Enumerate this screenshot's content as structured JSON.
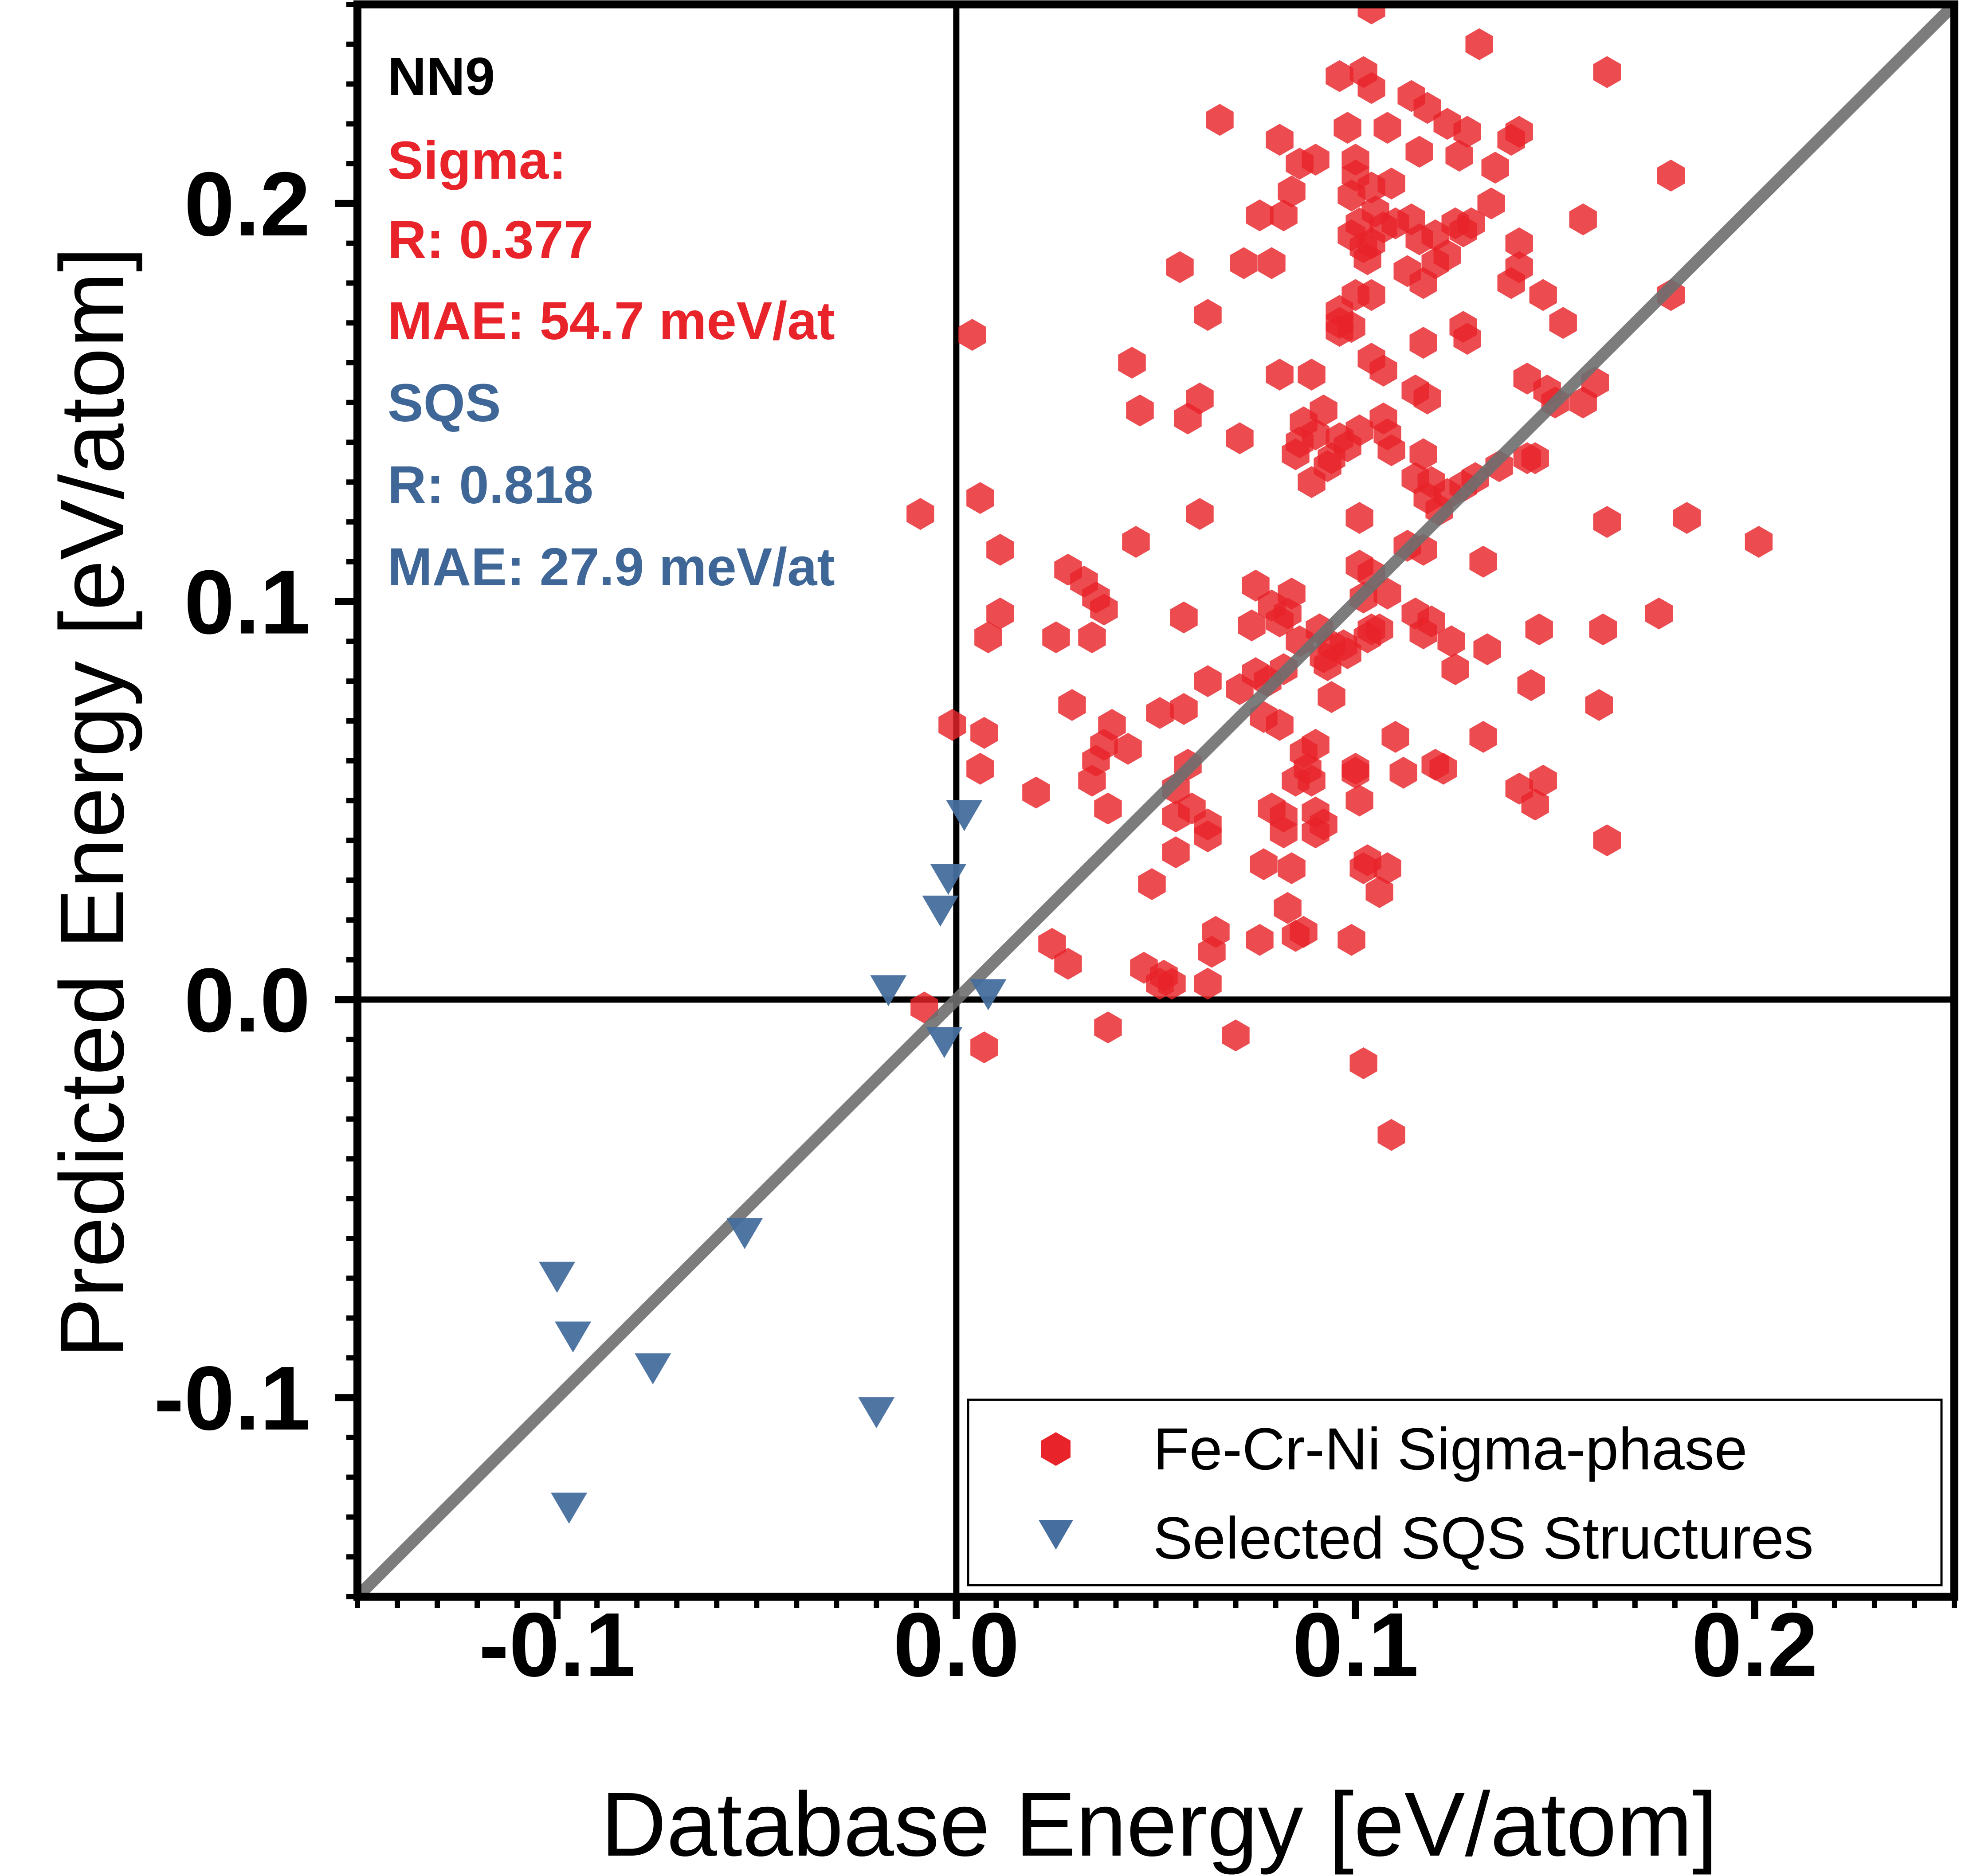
{
  "chart_data": {
    "type": "scatter",
    "xlabel": "Database Energy [eV/atom]",
    "ylabel": "Predicted Energy [eV/atom]",
    "xlim": [
      -0.15,
      0.25
    ],
    "ylim": [
      -0.15,
      0.25
    ],
    "xticks": [
      -0.1,
      0.0,
      0.1,
      0.2
    ],
    "yticks": [
      -0.1,
      0.0,
      0.1,
      0.2
    ],
    "xtick_labels": [
      "-0.1",
      "0.0",
      "0.1",
      "0.2"
    ],
    "ytick_labels": [
      "-0.1",
      "0.0",
      "0.1",
      "0.2"
    ],
    "minor_tick_step": 0.01,
    "reference_lines": {
      "x": 0.0,
      "y": 0.0,
      "diagonal": "y = x"
    },
    "legend_position": "bottom-right",
    "annotations": {
      "model": "NN9",
      "sigma_header": "Sigma:",
      "sigma_r": "R: 0.377",
      "sigma_mae": "MAE: 54.7 meV/at",
      "sqs_header": "SQS",
      "sqs_r": "R: 0.818",
      "sqs_mae": "MAE: 27.9 meV/at"
    },
    "colors": {
      "sigma": "#e8232a",
      "sqs": "#466e9e",
      "diagonal": "#6e6e6e",
      "sigma_text": "#e8232a",
      "sqs_text": "#3e6696"
    },
    "series": [
      {
        "name": "Fe-Cr-Ni Sigma-phase",
        "marker": "hexagon",
        "points": [
          [
            0.104,
            0.249
          ],
          [
            0.131,
            0.24
          ],
          [
            0.102,
            0.233
          ],
          [
            0.096,
            0.232
          ],
          [
            0.163,
            0.233
          ],
          [
            0.104,
            0.229
          ],
          [
            0.114,
            0.227
          ],
          [
            0.118,
            0.224
          ],
          [
            0.066,
            0.221
          ],
          [
            0.098,
            0.219
          ],
          [
            0.108,
            0.219
          ],
          [
            0.123,
            0.22
          ],
          [
            0.128,
            0.218
          ],
          [
            0.141,
            0.218
          ],
          [
            0.139,
            0.216
          ],
          [
            0.081,
            0.216
          ],
          [
            0.09,
            0.211
          ],
          [
            0.1,
            0.211
          ],
          [
            0.116,
            0.213
          ],
          [
            0.126,
            0.212
          ],
          [
            0.086,
            0.21
          ],
          [
            0.1,
            0.207
          ],
          [
            0.135,
            0.209
          ],
          [
            0.179,
            0.207
          ],
          [
            0.104,
            0.204
          ],
          [
            0.109,
            0.205
          ],
          [
            0.099,
            0.202
          ],
          [
            0.084,
            0.203
          ],
          [
            0.134,
            0.2
          ],
          [
            0.105,
            0.198
          ],
          [
            0.11,
            0.195
          ],
          [
            0.114,
            0.196
          ],
          [
            0.082,
            0.197
          ],
          [
            0.076,
            0.197
          ],
          [
            0.101,
            0.195
          ],
          [
            0.125,
            0.195
          ],
          [
            0.129,
            0.195
          ],
          [
            0.099,
            0.192
          ],
          [
            0.107,
            0.194
          ],
          [
            0.116,
            0.191
          ],
          [
            0.12,
            0.192
          ],
          [
            0.127,
            0.193
          ],
          [
            0.157,
            0.196
          ],
          [
            0.141,
            0.19
          ],
          [
            0.102,
            0.189
          ],
          [
            0.103,
            0.186
          ],
          [
            0.104,
            0.19
          ],
          [
            0.123,
            0.187
          ],
          [
            0.12,
            0.185
          ],
          [
            0.113,
            0.183
          ],
          [
            0.056,
            0.184
          ],
          [
            0.072,
            0.185
          ],
          [
            0.079,
            0.185
          ],
          [
            0.117,
            0.18
          ],
          [
            0.141,
            0.184
          ],
          [
            0.139,
            0.18
          ],
          [
            0.104,
            0.177
          ],
          [
            0.1,
            0.177
          ],
          [
            0.096,
            0.173
          ],
          [
            0.147,
            0.177
          ],
          [
            0.179,
            0.177
          ],
          [
            0.063,
            0.172
          ],
          [
            0.096,
            0.17
          ],
          [
            0.099,
            0.169
          ],
          [
            0.127,
            0.169
          ],
          [
            0.128,
            0.166
          ],
          [
            0.117,
            0.165
          ],
          [
            0.152,
            0.17
          ],
          [
            0.004,
            0.167
          ],
          [
            0.096,
            0.168
          ],
          [
            0.104,
            0.161
          ],
          [
            0.107,
            0.158
          ],
          [
            0.044,
            0.16
          ],
          [
            0.081,
            0.157
          ],
          [
            0.089,
            0.157
          ],
          [
            0.143,
            0.156
          ],
          [
            0.16,
            0.155
          ],
          [
            0.148,
            0.153
          ],
          [
            0.115,
            0.153
          ],
          [
            0.118,
            0.151
          ],
          [
            0.15,
            0.15
          ],
          [
            0.157,
            0.15
          ],
          [
            0.061,
            0.151
          ],
          [
            0.046,
            0.148
          ],
          [
            0.058,
            0.146
          ],
          [
            0.092,
            0.148
          ],
          [
            0.101,
            0.143
          ],
          [
            0.107,
            0.146
          ],
          [
            0.108,
            0.142
          ],
          [
            0.087,
            0.145
          ],
          [
            0.09,
            0.142
          ],
          [
            0.086,
            0.14
          ],
          [
            0.085,
            0.137
          ],
          [
            0.096,
            0.141
          ],
          [
            0.071,
            0.141
          ],
          [
            0.098,
            0.139
          ],
          [
            0.094,
            0.136
          ],
          [
            0.109,
            0.138
          ],
          [
            0.117,
            0.137
          ],
          [
            0.143,
            0.136
          ],
          [
            0.145,
            0.136
          ],
          [
            0.136,
            0.134
          ],
          [
            0.093,
            0.134
          ],
          [
            0.13,
            0.131
          ],
          [
            0.089,
            0.13
          ],
          [
            0.115,
            0.131
          ],
          [
            0.119,
            0.13
          ],
          [
            0.127,
            0.129
          ],
          [
            0.123,
            0.127
          ],
          [
            0.118,
            0.126
          ],
          [
            0.121,
            0.123
          ],
          [
            0.006,
            0.126
          ],
          [
            0.061,
            0.122
          ],
          [
            0.101,
            0.121
          ],
          [
            0.163,
            0.12
          ],
          [
            0.183,
            0.121
          ],
          [
            -0.009,
            0.122
          ],
          [
            0.011,
            0.113
          ],
          [
            0.045,
            0.115
          ],
          [
            0.113,
            0.114
          ],
          [
            0.117,
            0.113
          ],
          [
            0.201,
            0.115
          ],
          [
            0.132,
            0.11
          ],
          [
            0.101,
            0.109
          ],
          [
            0.104,
            0.107
          ],
          [
            0.028,
            0.108
          ],
          [
            0.032,
            0.105
          ],
          [
            0.035,
            0.101
          ],
          [
            0.037,
            0.098
          ],
          [
            0.075,
            0.104
          ],
          [
            0.084,
            0.102
          ],
          [
            0.079,
            0.099
          ],
          [
            0.083,
            0.097
          ],
          [
            0.081,
            0.095
          ],
          [
            0.074,
            0.094
          ],
          [
            0.102,
            0.101
          ],
          [
            0.108,
            0.102
          ],
          [
            0.115,
            0.097
          ],
          [
            0.119,
            0.095
          ],
          [
            0.117,
            0.092
          ],
          [
            0.124,
            0.09
          ],
          [
            0.133,
            0.088
          ],
          [
            0.125,
            0.083
          ],
          [
            0.146,
            0.093
          ],
          [
            0.176,
            0.097
          ],
          [
            0.162,
            0.093
          ],
          [
            0.011,
            0.097
          ],
          [
            0.008,
            0.091
          ],
          [
            0.025,
            0.091
          ],
          [
            0.034,
            0.091
          ],
          [
            0.057,
            0.096
          ],
          [
            0.091,
            0.093
          ],
          [
            0.094,
            0.089
          ],
          [
            0.097,
            0.089
          ],
          [
            0.098,
            0.087
          ],
          [
            0.092,
            0.086
          ],
          [
            0.104,
            0.093
          ],
          [
            0.106,
            0.093
          ],
          [
            0.103,
            0.091
          ],
          [
            0.086,
            0.09
          ],
          [
            0.093,
            0.084
          ],
          [
            0.082,
            0.083
          ],
          [
            0.075,
            0.082
          ],
          [
            0.078,
            0.08
          ],
          [
            0.071,
            0.078
          ],
          [
            0.063,
            0.08
          ],
          [
            0.094,
            0.076
          ],
          [
            0.077,
            0.071
          ],
          [
            0.081,
            0.069
          ],
          [
            0.051,
            0.072
          ],
          [
            0.057,
            0.073
          ],
          [
            0.029,
            0.074
          ],
          [
            0.144,
            0.079
          ],
          [
            0.161,
            0.074
          ],
          [
            -0.001,
            0.069
          ],
          [
            0.007,
            0.067
          ],
          [
            0.039,
            0.069
          ],
          [
            0.037,
            0.064
          ],
          [
            0.043,
            0.063
          ],
          [
            0.035,
            0.06
          ],
          [
            0.09,
            0.064
          ],
          [
            0.087,
            0.062
          ],
          [
            0.088,
            0.058
          ],
          [
            0.089,
            0.055
          ],
          [
            0.085,
            0.055
          ],
          [
            0.1,
            0.058
          ],
          [
            0.1,
            0.057
          ],
          [
            0.11,
            0.066
          ],
          [
            0.132,
            0.066
          ],
          [
            0.12,
            0.059
          ],
          [
            0.122,
            0.058
          ],
          [
            0.112,
            0.057
          ],
          [
            0.034,
            0.055
          ],
          [
            0.058,
            0.059
          ],
          [
            0.055,
            0.053
          ],
          [
            0.141,
            0.053
          ],
          [
            0.147,
            0.055
          ],
          [
            0.145,
            0.049
          ],
          [
            0.006,
            0.058
          ],
          [
            0.02,
            0.052
          ],
          [
            0.038,
            0.048
          ],
          [
            0.055,
            0.046
          ],
          [
            0.059,
            0.048
          ],
          [
            0.063,
            0.044
          ],
          [
            0.063,
            0.041
          ],
          [
            0.079,
            0.048
          ],
          [
            0.082,
            0.046
          ],
          [
            0.082,
            0.042
          ],
          [
            0.09,
            0.047
          ],
          [
            0.092,
            0.044
          ],
          [
            0.09,
            0.042
          ],
          [
            0.101,
            0.05
          ],
          [
            0.163,
            0.04
          ],
          [
            0.055,
            0.037
          ],
          [
            0.077,
            0.034
          ],
          [
            0.084,
            0.033
          ],
          [
            0.102,
            0.033
          ],
          [
            0.103,
            0.035
          ],
          [
            0.108,
            0.033
          ],
          [
            0.106,
            0.027
          ],
          [
            0.049,
            0.029
          ],
          [
            0.083,
            0.023
          ],
          [
            0.087,
            0.017
          ],
          [
            0.085,
            0.016
          ],
          [
            0.065,
            0.017
          ],
          [
            0.076,
            0.015
          ],
          [
            0.064,
            0.012
          ],
          [
            0.024,
            0.014
          ],
          [
            0.099,
            0.015
          ],
          [
            0.028,
            0.009
          ],
          [
            0.047,
            0.008
          ],
          [
            0.052,
            0.006
          ],
          [
            0.051,
            0.004
          ],
          [
            0.054,
            0.004
          ],
          [
            0.063,
            0.004
          ],
          [
            -0.008,
            -0.002
          ],
          [
            0.038,
            -0.007
          ],
          [
            0.007,
            -0.012
          ],
          [
            0.07,
            -0.009
          ],
          [
            0.102,
            -0.016
          ],
          [
            0.109,
            -0.034
          ]
        ]
      },
      {
        "name": "Selected SQS Structures",
        "marker": "triangle-down",
        "points": [
          [
            0.002,
            0.047
          ],
          [
            -0.002,
            0.031
          ],
          [
            -0.004,
            0.023
          ],
          [
            -0.017,
            0.003
          ],
          [
            0.008,
            0.002
          ],
          [
            -0.003,
            -0.01
          ],
          [
            -0.053,
            -0.058
          ],
          [
            -0.1,
            -0.069
          ],
          [
            -0.096,
            -0.084
          ],
          [
            -0.076,
            -0.092
          ],
          [
            -0.02,
            -0.103
          ],
          [
            -0.097,
            -0.127
          ]
        ]
      }
    ]
  }
}
